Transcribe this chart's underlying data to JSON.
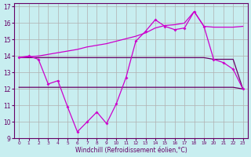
{
  "line1_x": [
    0,
    1,
    2,
    3,
    4,
    5,
    6,
    7,
    8,
    9,
    10,
    11,
    12,
    13,
    14,
    15,
    16,
    17,
    18,
    19,
    20,
    21,
    22,
    23
  ],
  "line1_y": [
    13.9,
    14.0,
    13.8,
    12.3,
    12.5,
    10.9,
    9.4,
    10.0,
    10.6,
    9.9,
    11.1,
    12.7,
    14.9,
    15.5,
    16.2,
    15.8,
    15.6,
    15.7,
    16.7,
    15.8,
    13.8,
    13.6,
    13.2,
    12.0
  ],
  "line2_x": [
    0,
    1,
    2,
    3,
    4,
    5,
    6,
    7,
    8,
    9,
    10,
    11,
    12,
    13,
    14,
    15,
    16,
    17,
    18,
    19,
    20,
    21,
    22,
    23
  ],
  "line2_y": [
    13.9,
    13.9,
    13.9,
    13.9,
    13.9,
    13.9,
    13.9,
    13.9,
    13.9,
    13.9,
    13.9,
    13.9,
    13.9,
    13.9,
    13.9,
    13.9,
    13.9,
    13.9,
    13.9,
    13.9,
    13.8,
    13.8,
    13.8,
    12.0
  ],
  "line3_x": [
    0,
    1,
    2,
    3,
    4,
    5,
    6,
    7,
    8,
    9,
    10,
    11,
    12,
    13,
    14,
    15,
    16,
    17,
    18,
    19,
    20,
    21,
    22,
    23
  ],
  "line3_y": [
    12.1,
    12.1,
    12.1,
    12.1,
    12.1,
    12.1,
    12.1,
    12.1,
    12.1,
    12.1,
    12.1,
    12.1,
    12.1,
    12.1,
    12.1,
    12.1,
    12.1,
    12.1,
    12.1,
    12.1,
    12.1,
    12.1,
    12.1,
    12.0
  ],
  "line4_x": [
    0,
    1,
    2,
    3,
    4,
    5,
    6,
    7,
    8,
    9,
    10,
    11,
    12,
    13,
    14,
    15,
    16,
    17,
    18,
    19,
    20,
    21,
    22,
    23
  ],
  "line4_y": [
    13.9,
    13.95,
    14.0,
    14.1,
    14.2,
    14.3,
    14.4,
    14.55,
    14.65,
    14.75,
    14.9,
    15.05,
    15.2,
    15.4,
    15.7,
    15.85,
    15.9,
    16.0,
    16.7,
    15.8,
    15.75,
    15.75,
    15.75,
    15.8
  ],
  "color_bright": "#cc00cc",
  "color_dark": "#660066",
  "xlabel": "Windchill (Refroidissement éolien,°C)",
  "bg_color": "#c8eef0",
  "grid_color": "#b0b0b0",
  "xlim": [
    -0.5,
    23.5
  ],
  "ylim": [
    9,
    17.2
  ],
  "yticks": [
    9,
    10,
    11,
    12,
    13,
    14,
    15,
    16,
    17
  ],
  "xticks": [
    0,
    1,
    2,
    3,
    4,
    5,
    6,
    7,
    8,
    9,
    10,
    11,
    12,
    13,
    14,
    15,
    16,
    17,
    18,
    19,
    20,
    21,
    22,
    23
  ]
}
